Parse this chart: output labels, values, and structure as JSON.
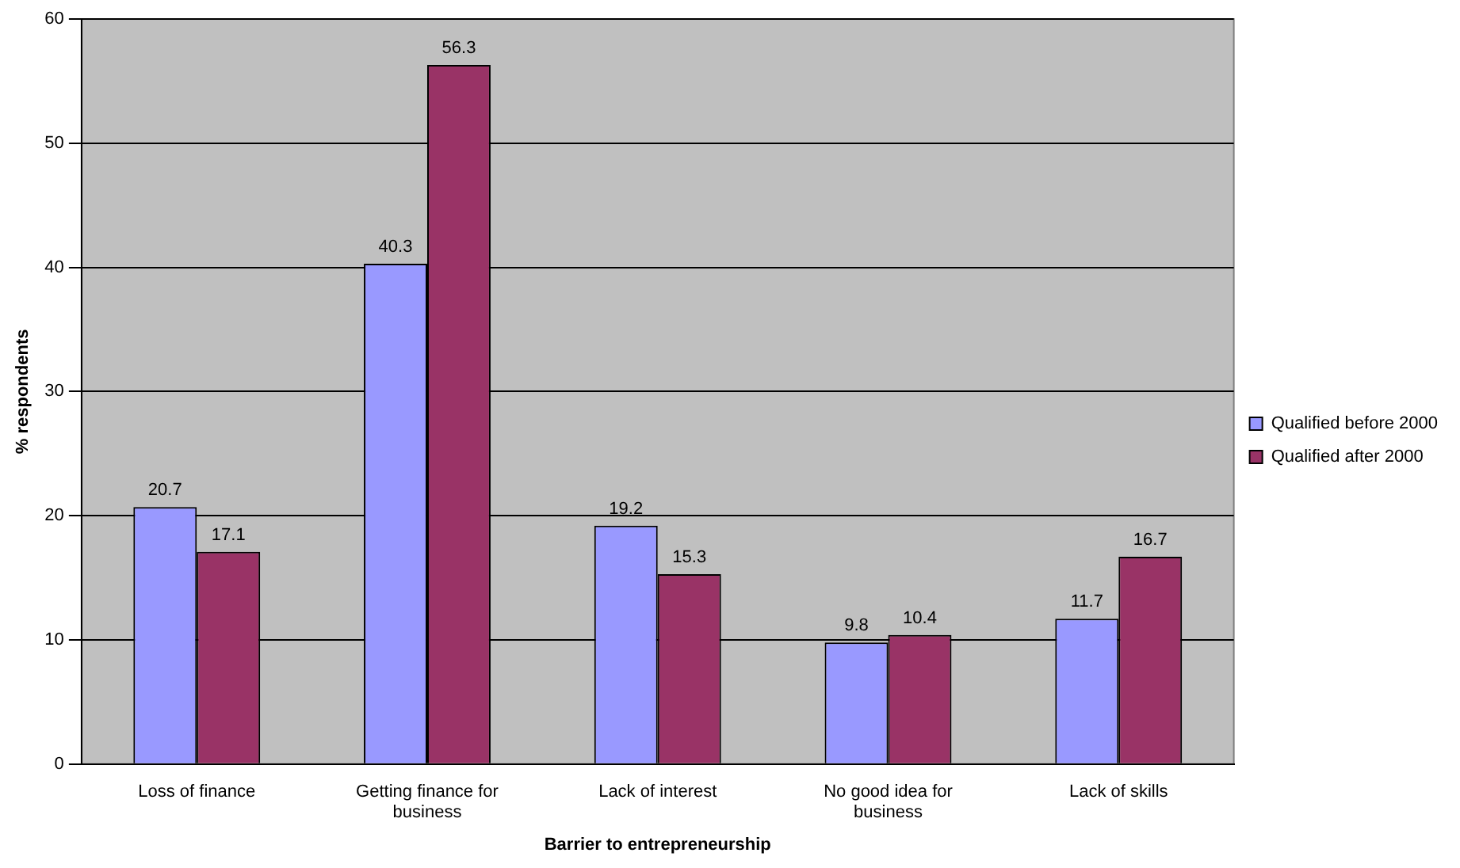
{
  "chart_data": {
    "type": "bar",
    "xlabel": "Barrier to entrepreneurship",
    "ylabel": "% respondents",
    "categories": [
      "Loss of finance",
      "Getting finance for business",
      "Lack of interest",
      "No good idea for business",
      "Lack of skills"
    ],
    "series": [
      {
        "name": "Qualified before 2000",
        "color": "#9999ff",
        "values": [
          20.7,
          40.3,
          19.2,
          9.8,
          11.7
        ]
      },
      {
        "name": "Qualified after 2000",
        "color": "#993366",
        "values": [
          17.1,
          56.3,
          15.3,
          10.4,
          16.7
        ]
      }
    ],
    "ylim": [
      0,
      60
    ],
    "yticks": [
      0,
      10,
      20,
      30,
      40,
      50,
      60
    ],
    "grid": "y",
    "legend": "right",
    "data_labels": true
  }
}
